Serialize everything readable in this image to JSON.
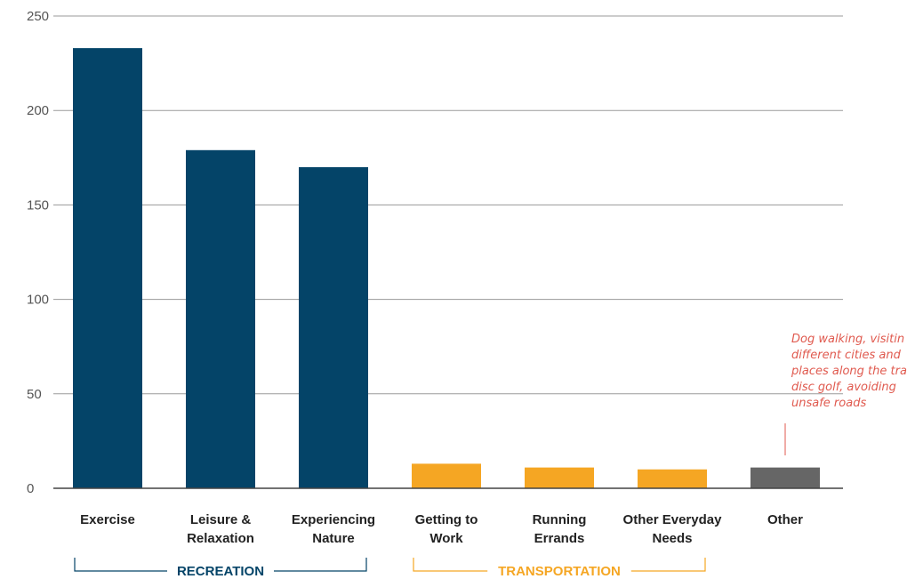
{
  "chart_data": {
    "type": "bar",
    "categories": [
      [
        "Exercise"
      ],
      [
        "Leisure &",
        "Relaxation"
      ],
      [
        "Experiencing",
        "Nature"
      ],
      [
        "Getting to",
        "Work"
      ],
      [
        "Running",
        "Errands"
      ],
      [
        "Other Everyday",
        "Needs"
      ],
      [
        "Other"
      ]
    ],
    "values": [
      233,
      179,
      170,
      13,
      11,
      10,
      11
    ],
    "bar_colors": [
      "#044468",
      "#044468",
      "#044468",
      "#f5a623",
      "#f5a623",
      "#f5a623",
      "#666666"
    ],
    "ylim": [
      0,
      250
    ],
    "yticks": [
      0,
      50,
      100,
      150,
      200,
      250
    ],
    "grid": true,
    "title": "",
    "xlabel": "",
    "ylabel": "",
    "groups": [
      {
        "label": "RECREATION",
        "from": 0,
        "to": 2,
        "color": "#044468"
      },
      {
        "label": "TRANSPORTATION",
        "from": 3,
        "to": 5,
        "color": "#f5a623"
      }
    ],
    "annotation": {
      "category_index": 6,
      "lines": [
        "Dog walking, visitin",
        "different cities and",
        "places along the tra",
        "disc golf, avoiding",
        "unsafe roads"
      ],
      "color": "#e05a4f"
    }
  }
}
